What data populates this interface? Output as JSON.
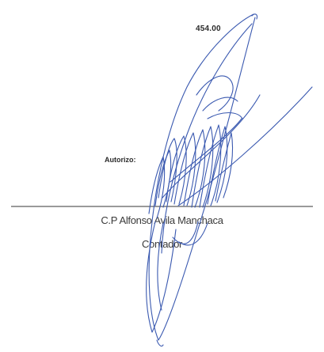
{
  "document": {
    "amount": "454.00",
    "authorize_label": "Autorizo:",
    "signer_name": "C.P Alfonso Avila Manchaca",
    "signer_role": "Contador"
  },
  "signature": {
    "type": "handwritten-signature",
    "ink_color": "#3a59b0"
  }
}
